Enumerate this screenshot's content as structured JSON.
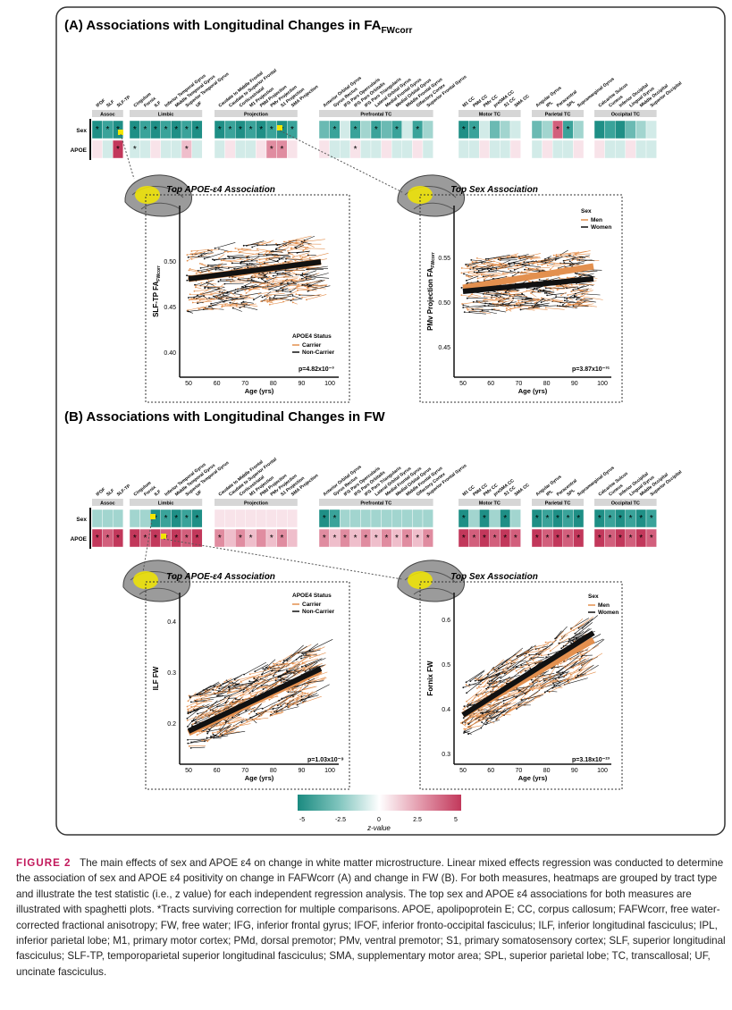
{
  "panelA": {
    "title_prefix": "(A) Associations with Longitudinal Changes in FA",
    "title_sub": "FWcorr",
    "left": {
      "subtitle": "Top APOE-ε4 Association",
      "ylabel_main": "SLF-TP FA",
      "ylabel_sub": "FWcorr",
      "yticks": [
        "0.50",
        "0.45",
        "0.40"
      ],
      "legend_title": "APOE4 Status",
      "legend": [
        "Carrier",
        "Non-Carrier"
      ],
      "pval": "p=4.82x10⁻³"
    },
    "right": {
      "subtitle": "Top Sex Association",
      "ylabel_main": "PMv Projection FA",
      "ylabel_sub": "FWcorr",
      "yticks": [
        "0.55",
        "0.50",
        "0.45"
      ],
      "legend_title": "Sex",
      "legend": [
        "Men",
        "Women"
      ],
      "pval": "p=3.87x10⁻³¹"
    }
  },
  "panelB": {
    "title": "(B) Associations with Longitudinal Changes in FW",
    "left": {
      "subtitle": "Top APOE-ε4 Association",
      "ylabel": "ILF FW",
      "yticks": [
        "0.4",
        "0.3",
        "0.2"
      ],
      "legend_title": "APOE4 Status",
      "legend": [
        "Carrier",
        "Non-Carrier"
      ],
      "pval": "p=1.03x10⁻⁹"
    },
    "right": {
      "subtitle": "Top Sex Association",
      "ylabel": "Fornix FW",
      "yticks": [
        "0.6",
        "0.5",
        "0.4",
        "0.3"
      ],
      "legend_title": "Sex",
      "legend": [
        "Men",
        "Women"
      ],
      "pval": "p=3.18x10⁻²³"
    }
  },
  "xaxis": {
    "label": "Age (yrs)",
    "ticks": [
      "50",
      "60",
      "70",
      "80",
      "90",
      "100"
    ]
  },
  "heatmap": {
    "row_labels": [
      "Sex",
      "APOE"
    ],
    "groups": [
      "Assoc",
      "Limbic",
      "Projection",
      "Prefrontal TC",
      "Motor TC",
      "Parietal TC",
      "Occipital TC"
    ],
    "tracts": [
      [
        "IFOF",
        "SLF",
        "SLF-TP"
      ],
      [
        "Cingulum",
        "Fornix",
        "ILF",
        "Inferior Temporal Gyrus",
        "Middle Temporal Gyrus",
        "Superior Temporal Gyrus",
        "UF"
      ],
      [
        "Caudate to Middle Frontal",
        "Caudate to Superior Frontal",
        "Corticostriatal",
        "M1 Projection",
        "PMd Projection",
        "PMv Projection",
        "S1 Projection",
        "SMA Projection"
      ],
      [
        "Anterior Orbital Gyrus",
        "Gyrus Rectus",
        "IFG Pars Opercularis",
        "IFG Pars Orbitalis",
        "IFG Pars Triangularis",
        "Lateral Orbital Gyrus",
        "Medial Frontal Gyrus",
        "Medial Orbital Gyrus",
        "Middle Frontal Gyrus",
        "Olfactory Cortex",
        "Superior Frontal Gyrus"
      ],
      [
        "M1 CC",
        "PMd CC",
        "PMv CC",
        "preSMA CC",
        "S1 CC",
        "SMA CC"
      ],
      [
        "Angular Gyrus",
        "IPL",
        "Paracentral",
        "SPL",
        "Supramarginal Gyrus"
      ],
      [
        "Calcarine Sulcus",
        "Cuneus",
        "Inferior Occipital",
        "Lingual Gyrus",
        "Middle Occipital",
        "Superior Occipital"
      ]
    ]
  },
  "colorbar": {
    "ticks": [
      "-5",
      "-2.5",
      "0",
      "2.5",
      "5"
    ],
    "label": "z-value"
  },
  "caption": {
    "label": "FIGURE 2",
    "text": "The main effects of sex and APOE ε4 on change in white matter microstructure. Linear mixed effects regression was conducted to determine the association of sex and APOE ε4 positivity on change in FAFWcorr (A) and change in FW (B). For both measures, heatmaps are grouped by tract type and illustrate the test statistic (i.e., z value) for each independent regression analysis. The top sex and APOE ε4 associations for both measures are illustrated with spaghetti plots. *Tracts surviving correction for multiple comparisons. APOE, apolipoprotein E; CC, corpus callosum; FAFWcorr, free water-corrected fractional anisotropy; FW, free water; IFG, inferior frontal gyrus; IFOF, inferior fronto-occipital fasciculus; ILF, inferior longitudinal fasciculus; IPL, inferior parietal lobe; M1, primary motor cortex; PMd, dorsal premotor; PMv, ventral premotor; S1, primary somatosensory cortex; SLF, superior longitudinal fasciculus; SLF-TP, temporoparietal superior longitudinal fasciculus; SMA, supplementary motor area; SPL, superior parietal lobe; TC, transcallosal; UF, uncinate fasciculus."
  },
  "colors": {
    "teal": "#1f8f86",
    "pink": "#c2385b",
    "carrier": "#e3904f",
    "noncarrier": "#111111",
    "highlight": "#f2e600"
  }
}
